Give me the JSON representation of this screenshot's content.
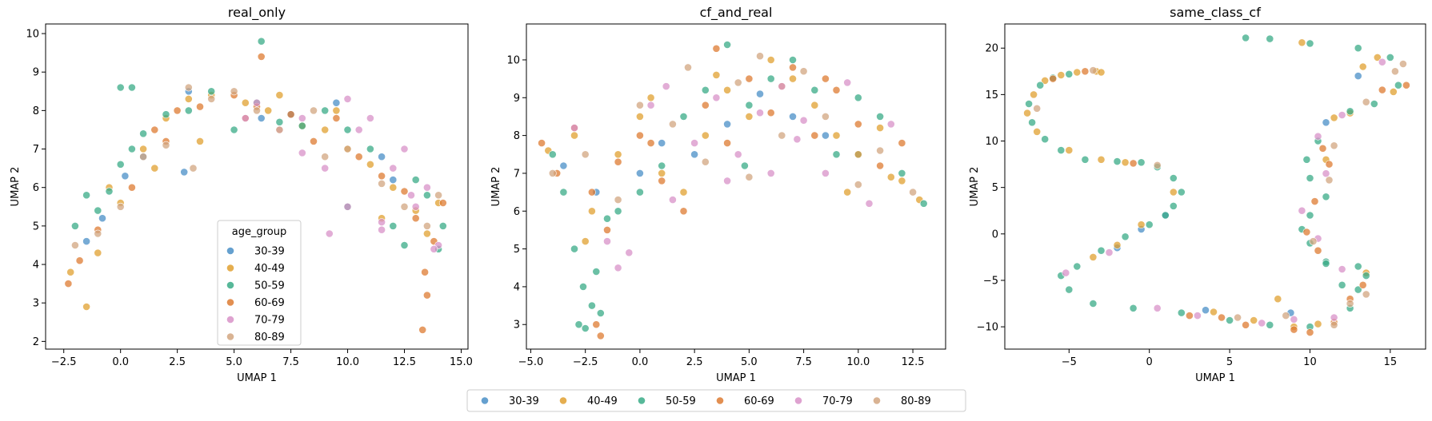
{
  "legend_title": "age_group",
  "groups": [
    {
      "label": "30-39",
      "color": "#4a8fc7"
    },
    {
      "label": "40-49",
      "color": "#e0a030"
    },
    {
      "label": "50-59",
      "color": "#3aab87"
    },
    {
      "label": "60-69",
      "color": "#dd7b32"
    },
    {
      "label": "70-79",
      "color": "#d892c8"
    },
    {
      "label": "80-89",
      "color": "#d2a680"
    }
  ],
  "chart_data": [
    {
      "type": "scatter",
      "title": "real_only",
      "xlabel": "UMAP 1",
      "ylabel": "UMAP 2",
      "xlim": [
        -3.3,
        15.3
      ],
      "ylim": [
        1.8,
        10.25
      ],
      "xticks": [
        -2.5,
        0.0,
        2.5,
        5.0,
        7.5,
        10.0,
        12.5,
        15.0
      ],
      "xtick_labels": [
        "−2.5",
        "0.0",
        "2.5",
        "5.0",
        "7.5",
        "10.0",
        "12.5",
        "15.0"
      ],
      "yticks": [
        2,
        3,
        4,
        5,
        6,
        7,
        8,
        9,
        10
      ],
      "ytick_labels": [
        "2",
        "3",
        "4",
        "5",
        "6",
        "7",
        "8",
        "9",
        "10"
      ],
      "legend": "lower-center",
      "series": [
        {
          "name": "30-39",
          "x": [
            -1.5,
            -0.8,
            0.2,
            1.0,
            2.8,
            3.0,
            6.2,
            7.5,
            9.5,
            11.5,
            12.0
          ],
          "y": [
            4.6,
            5.2,
            6.3,
            6.8,
            6.4,
            8.5,
            7.8,
            7.9,
            8.2,
            6.8,
            6.2
          ]
        },
        {
          "name": "40-49",
          "x": [
            -2.2,
            -1.5,
            -1.0,
            0.0,
            1.0,
            2.0,
            3.0,
            4.0,
            5.5,
            6.5,
            8.0,
            9.0,
            10.0,
            11.0,
            12.0,
            13.0,
            13.5,
            14.0,
            -0.5,
            1.5,
            3.5,
            7.0,
            9.5,
            11.5
          ],
          "y": [
            3.8,
            2.9,
            4.3,
            5.6,
            7.0,
            7.8,
            8.3,
            8.4,
            8.2,
            8.0,
            7.6,
            7.5,
            7.0,
            6.6,
            6.0,
            5.4,
            4.8,
            5.6,
            6.0,
            6.5,
            7.2,
            8.4,
            8.0,
            5.2
          ]
        },
        {
          "name": "50-59",
          "x": [
            -2.0,
            -1.5,
            -1.0,
            -0.5,
            0.0,
            0.5,
            1.0,
            2.0,
            3.0,
            4.0,
            5.0,
            6.0,
            6.2,
            7.0,
            8.0,
            9.0,
            10.0,
            11.0,
            12.0,
            12.5,
            13.0,
            13.5,
            14.0,
            14.2,
            0.0,
            0.5,
            10.0
          ],
          "y": [
            5.0,
            5.8,
            5.4,
            5.9,
            6.6,
            7.0,
            7.4,
            7.9,
            8.0,
            8.5,
            7.5,
            8.2,
            9.8,
            7.7,
            7.6,
            8.0,
            7.5,
            7.0,
            5.0,
            4.5,
            6.2,
            5.8,
            4.4,
            5.0,
            8.6,
            8.6,
            5.5
          ]
        },
        {
          "name": "60-69",
          "x": [
            -2.3,
            -1.8,
            -1.0,
            0.5,
            1.5,
            2.5,
            3.5,
            5.0,
            6.0,
            6.2,
            7.5,
            8.5,
            9.5,
            10.5,
            11.5,
            12.5,
            13.0,
            13.4,
            13.3,
            13.5,
            13.8,
            14.2,
            2.0,
            5.5
          ],
          "y": [
            3.5,
            4.1,
            4.9,
            6.0,
            7.5,
            8.0,
            8.1,
            8.4,
            8.1,
            9.4,
            7.9,
            7.2,
            7.8,
            6.8,
            6.3,
            5.9,
            5.2,
            3.8,
            2.3,
            3.2,
            4.6,
            5.6,
            7.2,
            7.8
          ]
        },
        {
          "name": "70-79",
          "x": [
            5.5,
            6.0,
            7.0,
            8.0,
            9.0,
            10.0,
            10.5,
            11.0,
            11.5,
            12.0,
            12.5,
            13.0,
            13.5,
            14.0,
            9.2,
            10.0,
            11.5,
            12.8,
            13.8,
            8.0
          ],
          "y": [
            7.8,
            8.2,
            7.5,
            7.8,
            6.5,
            8.3,
            7.5,
            7.8,
            5.1,
            6.5,
            7.0,
            5.5,
            6.0,
            4.5,
            4.8,
            5.5,
            4.9,
            5.8,
            4.4,
            6.9
          ]
        },
        {
          "name": "80-89",
          "x": [
            -2.0,
            -1.0,
            0.0,
            1.0,
            2.0,
            3.0,
            4.0,
            5.0,
            6.0,
            7.0,
            8.5,
            10.0,
            11.5,
            12.5,
            13.5,
            14.0,
            3.2,
            9.0
          ],
          "y": [
            4.5,
            4.8,
            5.5,
            6.8,
            7.1,
            8.6,
            8.3,
            8.5,
            8.0,
            7.5,
            8.0,
            7.0,
            6.1,
            5.5,
            5.0,
            5.8,
            6.5,
            6.8
          ]
        }
      ]
    },
    {
      "type": "scatter",
      "title": "cf_and_real",
      "xlabel": "UMAP 1",
      "ylabel": "UMAP 2",
      "xlim": [
        -5.2,
        14.0
      ],
      "ylim": [
        2.35,
        10.95
      ],
      "xticks": [
        -5.0,
        -2.5,
        0.0,
        2.5,
        5.0,
        7.5,
        10.0,
        12.5
      ],
      "xtick_labels": [
        "−5.0",
        "−2.5",
        "0.0",
        "2.5",
        "5.0",
        "7.5",
        "10.0",
        "12.5"
      ],
      "yticks": [
        3,
        4,
        5,
        6,
        7,
        8,
        9,
        10
      ],
      "ytick_labels": [
        "3",
        "4",
        "5",
        "6",
        "7",
        "8",
        "9",
        "10"
      ],
      "series": [
        {
          "name": "30-39",
          "x": [
            -3.5,
            -2.0,
            0.0,
            1.0,
            2.5,
            4.0,
            5.5,
            7.0,
            8.5,
            10.0
          ],
          "y": [
            7.2,
            6.5,
            7.0,
            7.8,
            7.5,
            8.3,
            9.1,
            8.5,
            8.0,
            7.5
          ]
        },
        {
          "name": "40-49",
          "x": [
            -4.2,
            -3.0,
            -2.2,
            -1.0,
            0.0,
            1.0,
            2.0,
            3.0,
            4.0,
            5.0,
            6.0,
            7.0,
            8.0,
            9.0,
            10.0,
            11.0,
            12.0,
            12.8,
            -2.5,
            0.5,
            3.5,
            6.5,
            9.5,
            11.5
          ],
          "y": [
            7.6,
            8.0,
            6.0,
            7.5,
            8.5,
            7.0,
            6.5,
            8.0,
            9.2,
            8.5,
            10.0,
            9.5,
            8.8,
            8.0,
            7.5,
            8.2,
            6.8,
            6.3,
            5.2,
            9.0,
            9.6,
            9.3,
            6.5,
            6.9
          ]
        },
        {
          "name": "50-59",
          "x": [
            -4.0,
            -3.5,
            -3.0,
            -2.6,
            -2.2,
            -1.8,
            -2.5,
            -1.0,
            0.0,
            1.0,
            2.0,
            3.0,
            4.0,
            5.0,
            6.0,
            7.0,
            8.0,
            9.0,
            10.0,
            11.0,
            12.0,
            13.0,
            -2.8,
            -2.0,
            -1.5,
            4.8
          ],
          "y": [
            7.5,
            6.5,
            5.0,
            4.0,
            3.5,
            3.3,
            2.9,
            6.0,
            6.5,
            7.2,
            8.5,
            9.2,
            10.4,
            8.8,
            9.5,
            10.0,
            9.2,
            7.5,
            9.0,
            8.5,
            7.0,
            6.2,
            3.0,
            4.4,
            5.8,
            7.2
          ]
        },
        {
          "name": "60-69",
          "x": [
            -4.5,
            -3.8,
            -3.0,
            -2.0,
            -1.8,
            -1.5,
            -1.0,
            0.0,
            1.0,
            2.0,
            3.0,
            4.0,
            5.0,
            6.0,
            7.0,
            8.0,
            9.0,
            10.0,
            11.0,
            12.0,
            -2.2,
            0.5,
            3.5,
            8.5
          ],
          "y": [
            7.8,
            7.0,
            8.2,
            3.0,
            2.7,
            5.5,
            7.3,
            8.0,
            6.8,
            6.0,
            8.8,
            7.8,
            9.5,
            8.6,
            9.8,
            8.0,
            9.2,
            8.3,
            7.2,
            7.8,
            6.5,
            7.8,
            10.3,
            9.5
          ]
        },
        {
          "name": "70-79",
          "x": [
            -3.0,
            -1.5,
            -0.5,
            0.5,
            1.5,
            2.5,
            3.5,
            4.5,
            5.5,
            6.5,
            7.5,
            8.5,
            9.5,
            10.5,
            11.5,
            -1.0,
            1.2,
            4.0,
            6.0,
            7.2
          ],
          "y": [
            8.2,
            5.2,
            4.9,
            8.8,
            6.3,
            7.8,
            9.0,
            7.5,
            8.6,
            9.3,
            8.4,
            7.0,
            9.4,
            6.2,
            8.3,
            4.5,
            9.3,
            6.8,
            7.0,
            7.9
          ]
        },
        {
          "name": "80-89",
          "x": [
            -4.0,
            -2.5,
            -1.0,
            0.0,
            1.5,
            3.0,
            4.5,
            5.5,
            6.5,
            7.5,
            8.5,
            10.0,
            11.0,
            12.5,
            2.2,
            5.0
          ],
          "y": [
            7.0,
            7.5,
            6.3,
            8.8,
            8.3,
            7.3,
            9.4,
            10.1,
            8.0,
            9.7,
            8.5,
            6.7,
            7.6,
            6.5,
            9.8,
            6.9
          ]
        }
      ]
    },
    {
      "type": "scatter",
      "title": "same_class_cf",
      "xlabel": "UMAP 1",
      "ylabel": "UMAP 2",
      "xlim": [
        -9.0,
        17.2
      ],
      "ylim": [
        -12.4,
        22.6
      ],
      "xticks": [
        -5,
        0,
        5,
        10,
        15
      ],
      "xtick_labels": [
        "−5",
        "0",
        "5",
        "10",
        "15"
      ],
      "yticks": [
        -10,
        -5,
        0,
        5,
        10,
        15,
        20
      ],
      "ytick_labels": [
        "−10",
        "−5",
        "0",
        "5",
        "10",
        "15",
        "20"
      ],
      "series": [
        {
          "name": "30-39",
          "x": [
            -2.0,
            -0.5,
            1.0,
            3.5,
            8.8,
            11.0,
            13.0
          ],
          "y": [
            -1.5,
            0.5,
            2.0,
            -8.2,
            -8.5,
            12.0,
            17.0
          ]
        },
        {
          "name": "40-49",
          "x": [
            -7.2,
            -6.5,
            -5.5,
            -4.5,
            -3.3,
            -3.0,
            -7.6,
            -7.0,
            -5.0,
            -3.0,
            -1.5,
            -3.5,
            -2.0,
            -0.5,
            1.5,
            4.0,
            6.5,
            9.0,
            10.5,
            11.0,
            11.5,
            12.5,
            13.3,
            14.2,
            15.2,
            9.5,
            13.5,
            8.0
          ],
          "y": [
            15.0,
            16.5,
            17.1,
            17.4,
            17.5,
            17.4,
            13.0,
            11.0,
            9.0,
            8.0,
            7.7,
            -2.5,
            -1.2,
            1.0,
            4.5,
            -8.4,
            -9.3,
            -10.0,
            -9.7,
            8.0,
            12.5,
            13.0,
            18.0,
            19.0,
            15.3,
            20.6,
            -4.2,
            -7.0
          ]
        },
        {
          "name": "50-59",
          "x": [
            -7.5,
            -6.8,
            -6.0,
            -5.0,
            -7.3,
            -6.5,
            -5.5,
            -4.0,
            -2.0,
            -0.5,
            0.5,
            1.5,
            2.0,
            1.5,
            1.0,
            0.0,
            -1.5,
            -3.0,
            -4.5,
            -5.5,
            -5.0,
            -3.5,
            -1.0,
            2.0,
            5.0,
            7.5,
            10.0,
            12.5,
            13.0,
            13.5,
            13.0,
            11.0,
            10.0,
            9.5,
            10.0,
            11.0,
            10.0,
            9.8,
            10.5,
            12.5,
            14.0,
            15.5,
            15.0,
            13.0,
            10.0,
            7.5,
            6.0,
            12.0,
            11.0
          ],
          "y": [
            14.0,
            16.0,
            16.8,
            17.2,
            12.0,
            10.2,
            9.0,
            8.0,
            7.8,
            7.7,
            7.2,
            6.0,
            4.5,
            3.0,
            2.0,
            1.0,
            -0.3,
            -1.8,
            -3.5,
            -4.5,
            -6.0,
            -7.5,
            -8.0,
            -8.5,
            -9.3,
            -9.8,
            -10.0,
            -8.0,
            -6.0,
            -4.5,
            -3.5,
            -3.0,
            -1.0,
            0.5,
            2.0,
            4.0,
            6.0,
            8.0,
            10.0,
            13.2,
            14.0,
            16.0,
            19.0,
            20.0,
            20.5,
            21.0,
            21.1,
            -5.5,
            -3.2
          ]
        },
        {
          "name": "60-69",
          "x": [
            -6.0,
            -4.0,
            -1.0,
            2.5,
            6.0,
            9.0,
            10.0,
            11.5,
            12.5,
            13.3,
            10.5,
            9.8,
            10.8,
            14.5,
            16.0,
            11.2,
            10.3,
            4.5
          ],
          "y": [
            16.7,
            17.5,
            7.6,
            -8.8,
            -9.8,
            -10.3,
            -10.6,
            -9.5,
            -7.0,
            -5.5,
            -1.8,
            0.2,
            9.2,
            15.5,
            16.0,
            7.5,
            3.5,
            -9.0
          ]
        },
        {
          "name": "70-79",
          "x": [
            -5.2,
            -2.5,
            0.5,
            3.0,
            7.0,
            9.0,
            10.5,
            12.0,
            9.5,
            11.0,
            10.5,
            12.0,
            14.5,
            11.5
          ],
          "y": [
            -4.2,
            -2.0,
            -8.0,
            -8.8,
            -9.6,
            -9.2,
            -0.5,
            -3.8,
            2.5,
            6.5,
            10.5,
            12.8,
            18.5,
            -9.0
          ]
        },
        {
          "name": "80-89",
          "x": [
            -7.0,
            -3.5,
            0.5,
            5.5,
            8.5,
            11.5,
            12.5,
            13.5,
            10.2,
            11.2,
            11.5,
            13.5,
            15.3,
            15.8
          ],
          "y": [
            13.5,
            17.6,
            7.4,
            -9.0,
            -8.8,
            -9.8,
            -7.5,
            -6.5,
            -0.8,
            5.8,
            9.5,
            14.2,
            17.5,
            18.3
          ]
        }
      ]
    }
  ]
}
